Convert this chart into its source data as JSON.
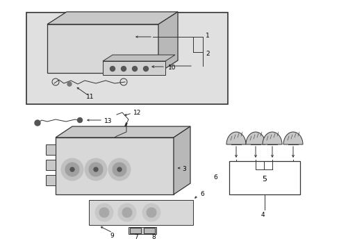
{
  "bg_color": "#e8e8e8",
  "fig_bg": "#ffffff",
  "line_color": "#333333",
  "figsize": [
    4.89,
    3.6
  ],
  "dpi": 100
}
